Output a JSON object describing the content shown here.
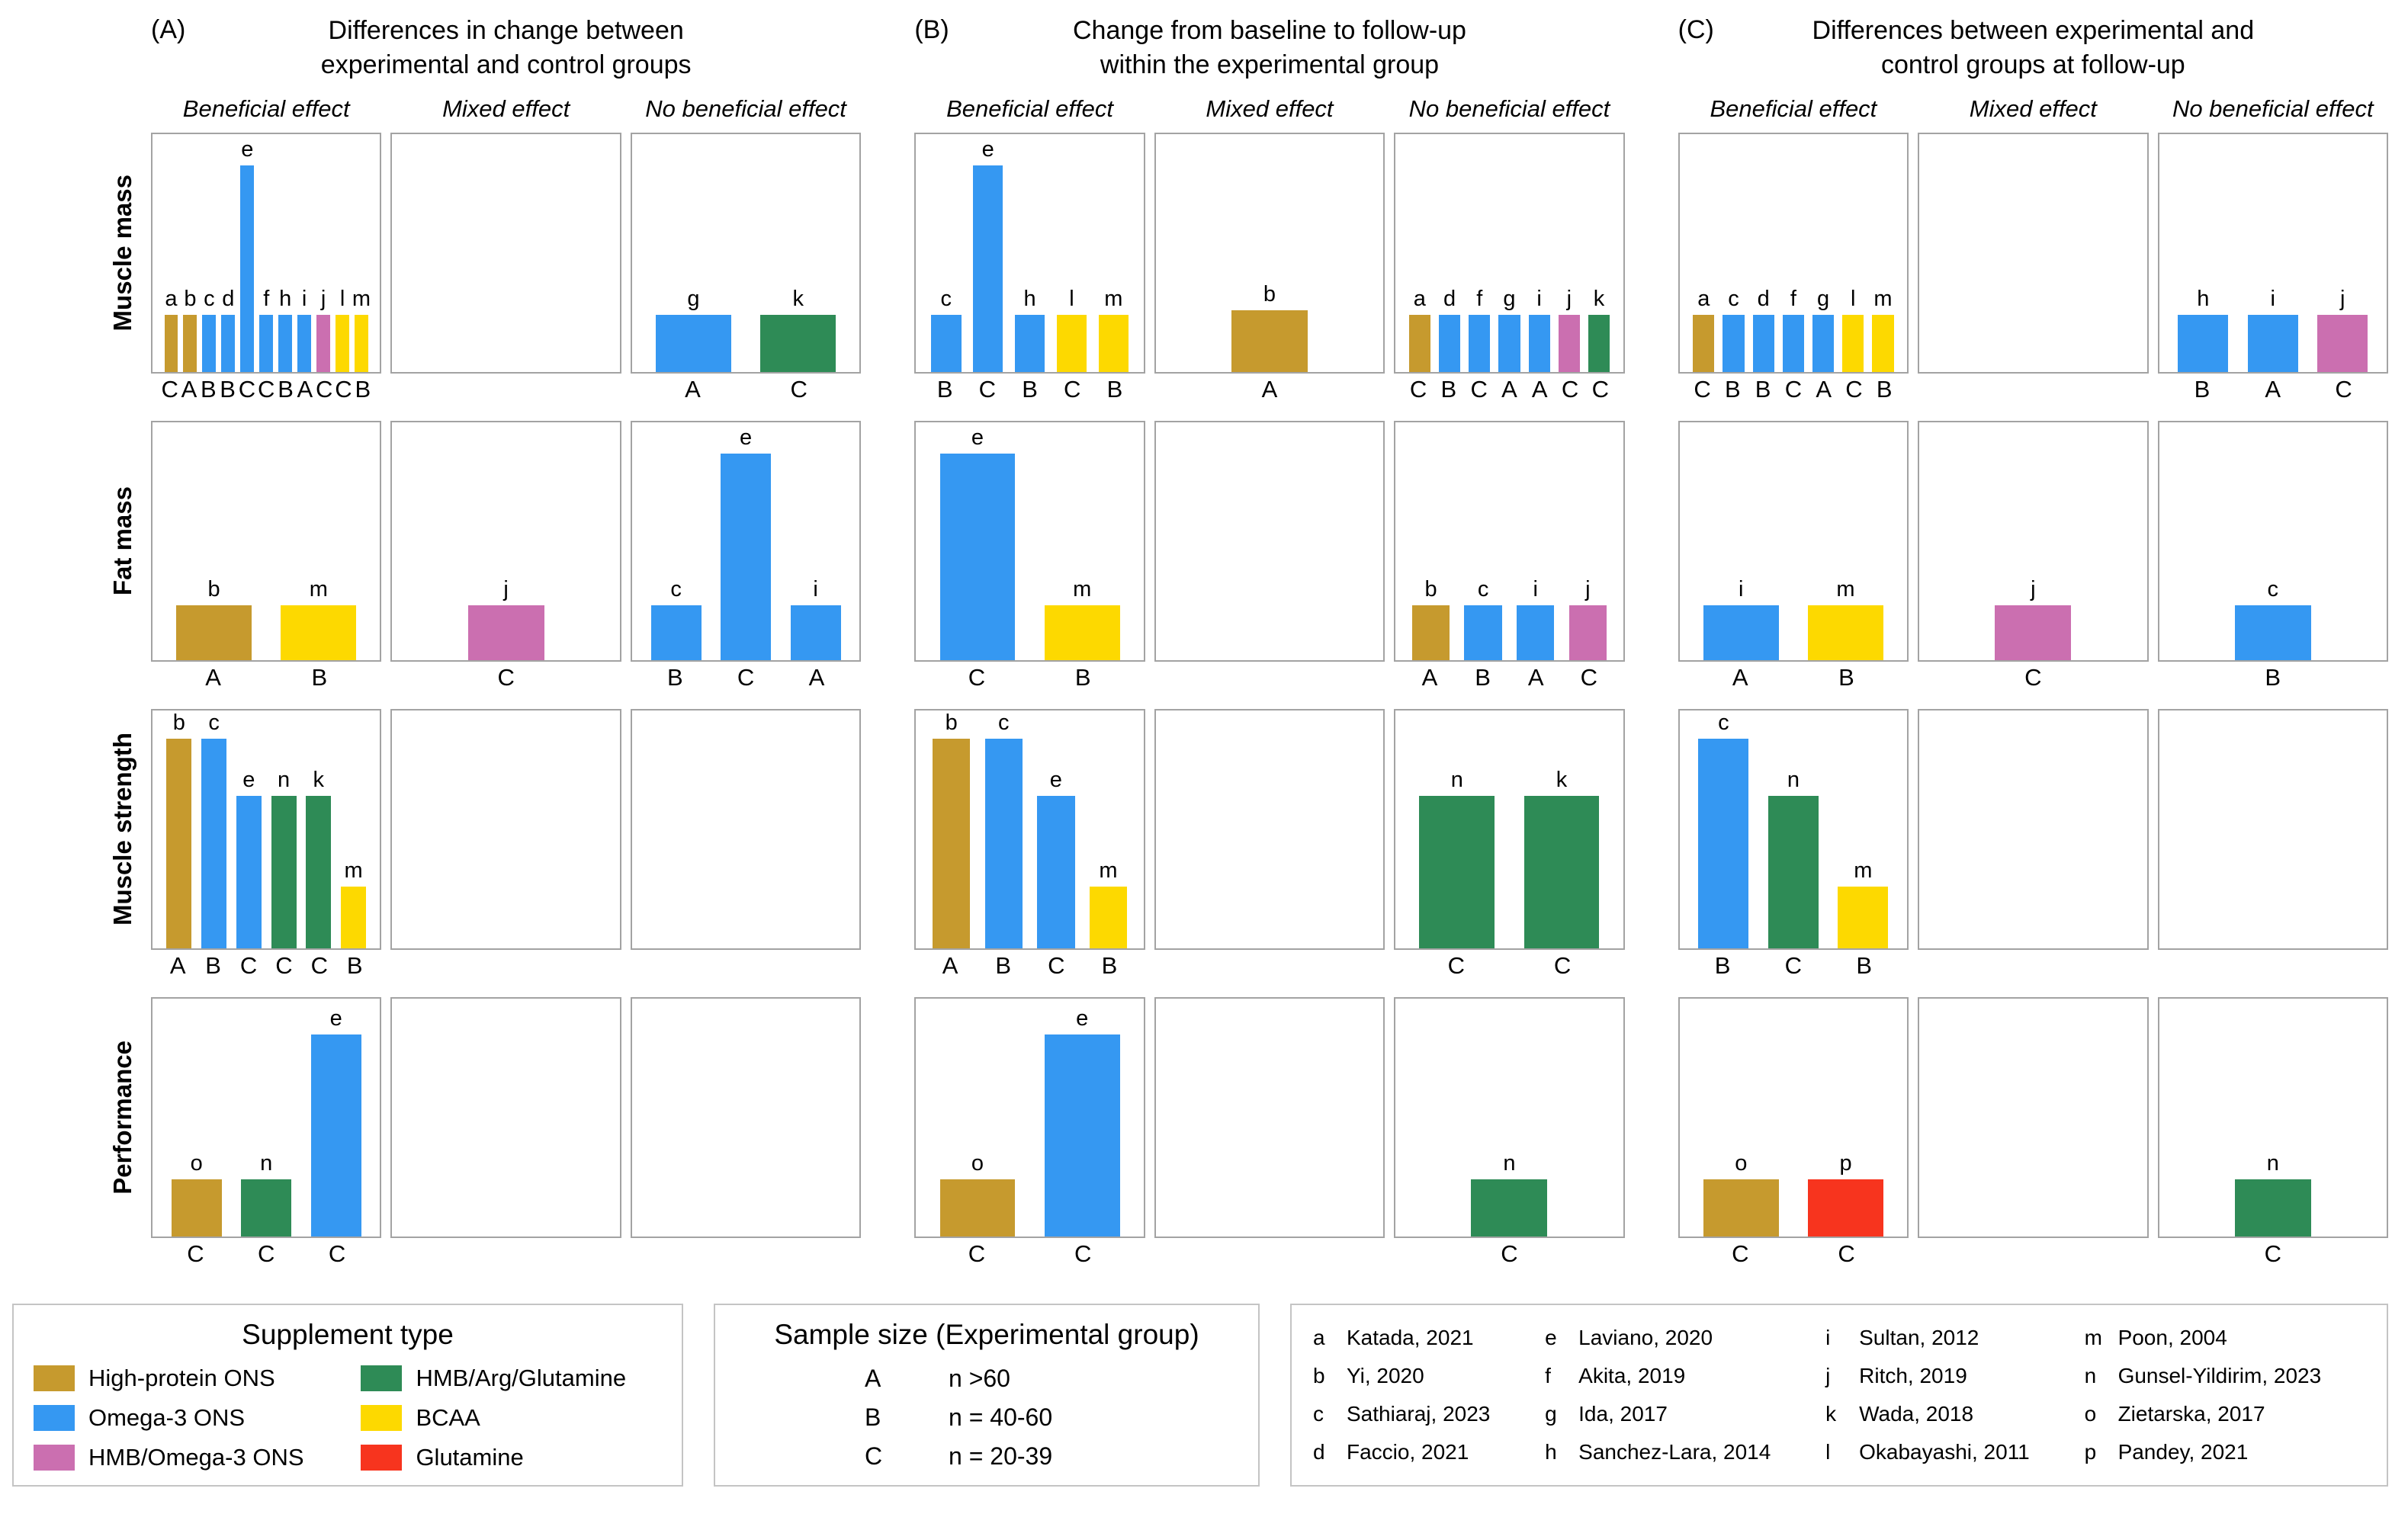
{
  "chart_data": {
    "type": "bar",
    "panels": [
      {
        "tag": "(A)",
        "title": "Differences in change between\nexperimental and control groups"
      },
      {
        "tag": "(B)",
        "title": "Change from baseline to follow-up\nwithin the experimental group"
      },
      {
        "tag": "(C)",
        "title": "Differences between experimental and\ncontrol groups at follow-up"
      }
    ],
    "effect_columns": [
      "Beneficial effect",
      "Mixed effect",
      "No beneficial effect"
    ],
    "outcome_rows": [
      "Muscle mass",
      "Fat mass",
      "Muscle strength",
      "Performance"
    ],
    "supplement_types": [
      {
        "key": "high_protein",
        "label": "High-protein ONS",
        "color": "#C69A2E"
      },
      {
        "key": "omega3",
        "label": "Omega-3 ONS",
        "color": "#3598F2"
      },
      {
        "key": "hmb_omega3",
        "label": "HMB/Omega-3 ONS",
        "color": "#CB6FB0"
      },
      {
        "key": "hmb_arg_glutamine",
        "label": "HMB/Arg/Glutamine",
        "color": "#2E8B56"
      },
      {
        "key": "bcaa",
        "label": "BCAA",
        "color": "#FDD900"
      },
      {
        "key": "glutamine",
        "label": "Glutamine",
        "color": "#F7341E"
      }
    ],
    "studies": {
      "a": {
        "reference": "Katada, 2021",
        "supplement": "high_protein",
        "sample_size": "C"
      },
      "b": {
        "reference": "Yi, 2020",
        "supplement": "high_protein",
        "sample_size": "A"
      },
      "c": {
        "reference": "Sathiaraj, 2023",
        "supplement": "omega3",
        "sample_size": "B"
      },
      "d": {
        "reference": "Faccio, 2021",
        "supplement": "omega3",
        "sample_size": "B"
      },
      "e": {
        "reference": "Laviano, 2020",
        "supplement": "omega3",
        "sample_size": "C"
      },
      "f": {
        "reference": "Akita, 2019",
        "supplement": "omega3",
        "sample_size": "C"
      },
      "g": {
        "reference": "Ida, 2017",
        "supplement": "omega3",
        "sample_size": "A"
      },
      "h": {
        "reference": "Sanchez-Lara, 2014",
        "supplement": "omega3",
        "sample_size": "B"
      },
      "i": {
        "reference": "Sultan, 2012",
        "supplement": "omega3",
        "sample_size": "A"
      },
      "j": {
        "reference": "Ritch, 2019",
        "supplement": "hmb_omega3",
        "sample_size": "C"
      },
      "k": {
        "reference": "Wada, 2018",
        "supplement": "hmb_arg_glutamine",
        "sample_size": "C"
      },
      "l": {
        "reference": "Okabayashi, 2011",
        "supplement": "bcaa",
        "sample_size": "C"
      },
      "m": {
        "reference": "Poon, 2004",
        "supplement": "bcaa",
        "sample_size": "B"
      },
      "n": {
        "reference": "Gunsel-Yildirim, 2023",
        "supplement": "hmb_arg_glutamine",
        "sample_size": "C"
      },
      "o": {
        "reference": "Zietarska, 2017",
        "supplement": "high_protein",
        "sample_size": "C"
      },
      "p": {
        "reference": "Pandey, 2021",
        "supplement": "glutamine",
        "sample_size": "C"
      }
    },
    "cells": [
      [
        [
          [
            {
              "s": "a",
              "h": 0.24
            },
            {
              "s": "b",
              "h": 0.24
            },
            {
              "s": "c",
              "h": 0.24
            },
            {
              "s": "d",
              "h": 0.24
            },
            {
              "s": "e",
              "h": 0.87
            },
            {
              "s": "f",
              "h": 0.24
            },
            {
              "s": "h",
              "h": 0.24
            },
            {
              "s": "i",
              "h": 0.24
            },
            {
              "s": "j",
              "h": 0.24
            },
            {
              "s": "l",
              "h": 0.24
            },
            {
              "s": "m",
              "h": 0.24
            }
          ],
          [],
          [
            {
              "s": "g",
              "h": 0.24
            },
            {
              "s": "k",
              "h": 0.24
            }
          ]
        ],
        [
          [
            {
              "s": "b",
              "h": 0.23
            },
            {
              "s": "m",
              "h": 0.23
            }
          ],
          [
            {
              "s": "j",
              "h": 0.23
            }
          ],
          [
            {
              "s": "c",
              "h": 0.23
            },
            {
              "s": "e",
              "h": 0.87
            },
            {
              "s": "i",
              "h": 0.23
            }
          ]
        ],
        [
          [
            {
              "s": "b",
              "h": 0.88
            },
            {
              "s": "c",
              "h": 0.88
            },
            {
              "s": "e",
              "h": 0.64
            },
            {
              "s": "n",
              "h": 0.64
            },
            {
              "s": "k",
              "h": 0.64
            },
            {
              "s": "m",
              "h": 0.26
            }
          ],
          [],
          []
        ],
        [
          [
            {
              "s": "o",
              "h": 0.24
            },
            {
              "s": "n",
              "h": 0.24
            },
            {
              "s": "e",
              "h": 0.85
            }
          ],
          [],
          []
        ]
      ],
      [
        [
          [
            {
              "s": "c",
              "h": 0.24
            },
            {
              "s": "e",
              "h": 0.87
            },
            {
              "s": "h",
              "h": 0.24
            },
            {
              "s": "l",
              "h": 0.24
            },
            {
              "s": "m",
              "h": 0.24
            }
          ],
          [
            {
              "s": "b",
              "h": 0.26
            }
          ],
          [
            {
              "s": "a",
              "h": 0.24
            },
            {
              "s": "d",
              "h": 0.24
            },
            {
              "s": "f",
              "h": 0.24
            },
            {
              "s": "g",
              "h": 0.24
            },
            {
              "s": "i",
              "h": 0.24
            },
            {
              "s": "j",
              "h": 0.24
            },
            {
              "s": "k",
              "h": 0.24
            }
          ]
        ],
        [
          [
            {
              "s": "e",
              "h": 0.87
            },
            {
              "s": "m",
              "h": 0.23
            }
          ],
          [],
          [
            {
              "s": "b",
              "h": 0.23
            },
            {
              "s": "c",
              "h": 0.23
            },
            {
              "s": "i",
              "h": 0.23
            },
            {
              "s": "j",
              "h": 0.23
            }
          ]
        ],
        [
          [
            {
              "s": "b",
              "h": 0.88
            },
            {
              "s": "c",
              "h": 0.88
            },
            {
              "s": "e",
              "h": 0.64
            },
            {
              "s": "m",
              "h": 0.26
            }
          ],
          [],
          [
            {
              "s": "n",
              "h": 0.64
            },
            {
              "s": "k",
              "h": 0.64
            }
          ]
        ],
        [
          [
            {
              "s": "o",
              "h": 0.24
            },
            {
              "s": "e",
              "h": 0.85
            }
          ],
          [],
          [
            {
              "s": "n",
              "h": 0.24
            }
          ]
        ]
      ],
      [
        [
          [
            {
              "s": "a",
              "h": 0.24
            },
            {
              "s": "c",
              "h": 0.24
            },
            {
              "s": "d",
              "h": 0.24
            },
            {
              "s": "f",
              "h": 0.24
            },
            {
              "s": "g",
              "h": 0.24
            },
            {
              "s": "l",
              "h": 0.24
            },
            {
              "s": "m",
              "h": 0.24
            }
          ],
          [],
          [
            {
              "s": "h",
              "h": 0.24
            },
            {
              "s": "i",
              "h": 0.24
            },
            {
              "s": "j",
              "h": 0.24
            }
          ]
        ],
        [
          [
            {
              "s": "i",
              "h": 0.23
            },
            {
              "s": "m",
              "h": 0.23
            }
          ],
          [
            {
              "s": "j",
              "h": 0.23
            }
          ],
          [
            {
              "s": "c",
              "h": 0.23
            }
          ]
        ],
        [
          [
            {
              "s": "c",
              "h": 0.88
            },
            {
              "s": "n",
              "h": 0.64
            },
            {
              "s": "m",
              "h": 0.26
            }
          ],
          [],
          []
        ],
        [
          [
            {
              "s": "o",
              "h": 0.24
            },
            {
              "s": "p",
              "h": 0.24
            }
          ],
          [],
          [
            {
              "s": "n",
              "h": 0.24
            }
          ]
        ]
      ]
    ]
  },
  "legend": {
    "supplement": {
      "title": "Supplement type"
    },
    "sample_size": {
      "title": "Sample size (Experimental group)",
      "items": [
        {
          "letter": "A",
          "value": "n >60"
        },
        {
          "letter": "B",
          "value": "n = 40-60"
        },
        {
          "letter": "C",
          "value": "n = 20-39"
        }
      ]
    }
  }
}
